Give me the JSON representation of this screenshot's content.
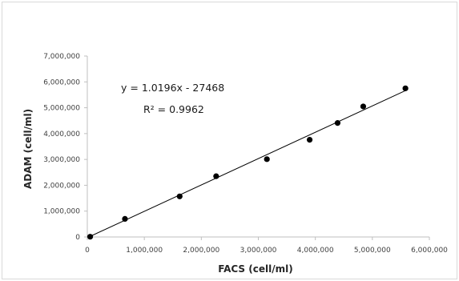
{
  "chart_data": {
    "type": "scatter",
    "title": "",
    "xlabel": "FACS  (cell/ml)",
    "ylabel": "ADAM  (cell/ml)",
    "xlim": [
      0,
      6000000
    ],
    "ylim": [
      0,
      7000000
    ],
    "x_ticks": [
      0,
      1000000,
      2000000,
      3000000,
      4000000,
      5000000,
      6000000
    ],
    "y_ticks": [
      0,
      1000000,
      2000000,
      3000000,
      4000000,
      5000000,
      6000000,
      7000000
    ],
    "x_tick_labels": [
      "0",
      "1,000,000",
      "2,000,000",
      "3,000,000",
      "4,000,000",
      "5,000,000",
      "6,000,000"
    ],
    "y_tick_labels": [
      "0",
      "1,000,000",
      "2,000,000",
      "3,000,000",
      "4,000,000",
      "5,000,000",
      "6,000,000",
      "7,000,000"
    ],
    "grid": false,
    "legend": "none",
    "series": [
      {
        "x": [
          50000,
          660000,
          1620000,
          2260000,
          3150000,
          3900000,
          4390000,
          4840000,
          5580000
        ],
        "y": [
          10000,
          700000,
          1570000,
          2350000,
          3010000,
          3760000,
          4410000,
          5050000,
          5750000
        ],
        "color": "#000000"
      }
    ],
    "trendline": {
      "slope": 1.0196,
      "intercept": -27468,
      "x_range": [
        50000,
        5580000
      ],
      "color": "#000000"
    },
    "annotations": {
      "equation": "y = 1.0196x  - 27468",
      "r_squared": "R² = 0.9962"
    }
  }
}
